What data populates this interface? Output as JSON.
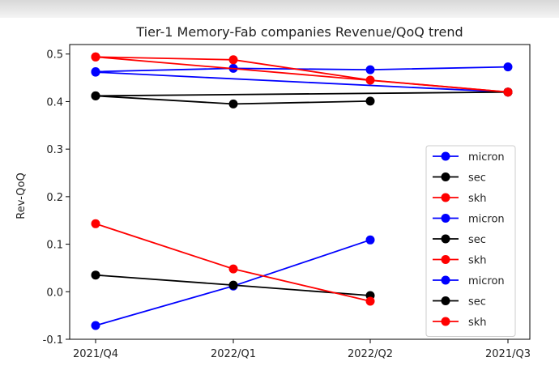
{
  "chart_data": {
    "type": "line",
    "title": "Tier-1 Memory-Fab companies Revenue/QoQ trend",
    "xlabel": "",
    "ylabel": "Rev-QoQ",
    "categories": [
      "2021/Q4",
      "2022/Q1",
      "2022/Q2",
      "2021/Q3"
    ],
    "ylim": [
      -0.1,
      0.52
    ],
    "yticks": [
      "-0.1",
      "0.0",
      "0.1",
      "0.2",
      "0.3",
      "0.4",
      "0.5"
    ],
    "ytick_values": [
      -0.1,
      0.0,
      0.1,
      0.2,
      0.3,
      0.4,
      0.5
    ],
    "grid": false,
    "legend_position": "lower-right",
    "series": [
      {
        "name": "micron",
        "color": "#0000ff",
        "x": [
          0,
          1,
          2,
          3
        ],
        "values": [
          0.463,
          0.47,
          0.467,
          0.473
        ]
      },
      {
        "name": "sec",
        "color": "#000000",
        "x": [
          0,
          1,
          2
        ],
        "values": [
          0.412,
          0.395,
          0.401
        ]
      },
      {
        "name": "skh",
        "color": "#ff0000",
        "x": [
          0,
          1,
          2,
          3
        ],
        "values": [
          0.494,
          0.488,
          0.445,
          0.42
        ]
      },
      {
        "name": "micron",
        "color": "#0000ff",
        "x": [
          0,
          3
        ],
        "values": [
          0.462,
          0.42
        ]
      },
      {
        "name": "sec",
        "color": "#000000",
        "x": [
          0,
          3
        ],
        "values": [
          0.412,
          0.42
        ]
      },
      {
        "name": "skh",
        "color": "#ff0000",
        "x": [
          0,
          3
        ],
        "values": [
          0.494,
          0.42
        ]
      },
      {
        "name": "micron",
        "color": "#0000ff",
        "x": [
          0,
          1,
          2
        ],
        "values": [
          -0.071,
          0.012,
          0.109
        ]
      },
      {
        "name": "sec",
        "color": "#000000",
        "x": [
          0,
          1,
          2
        ],
        "values": [
          0.035,
          0.014,
          -0.008
        ]
      },
      {
        "name": "skh",
        "color": "#ff0000",
        "x": [
          0,
          1,
          2
        ],
        "values": [
          0.143,
          0.048,
          -0.02
        ]
      }
    ]
  }
}
